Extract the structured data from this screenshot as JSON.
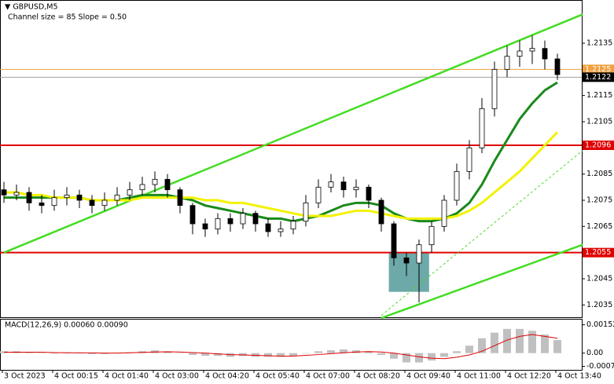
{
  "chart_data": {
    "type": "candlestick",
    "title": "▼ GBPUSD,M5",
    "subtitle": "Channel size = 85 Slope = 0.50",
    "categories": [
      "3 Oct 2023",
      null,
      null,
      null,
      "4 Oct 00:15",
      null,
      null,
      null,
      "4 Oct 01:40",
      null,
      null,
      null,
      "4 Oct 03:00",
      null,
      null,
      null,
      "4 Oct 04:20",
      null,
      null,
      null,
      "4 Oct 05:40",
      null,
      null,
      null,
      "4 Oct 07:00",
      null,
      null,
      null,
      "4 Oct 08:20",
      null,
      null,
      null,
      "4 Oct 09:40",
      null,
      null,
      null,
      "4 Oct 11:00",
      null,
      null,
      null,
      "4 Oct 12:20",
      null,
      null,
      null,
      "4 Oct 13:40"
    ],
    "open": [
      1.2079,
      1.2077,
      1.2078,
      1.2074,
      1.2073,
      1.2076,
      1.2077,
      1.2075,
      1.2073,
      1.2075,
      1.2077,
      1.2079,
      1.2081,
      1.2083,
      1.2079,
      1.2073,
      1.2066,
      1.2064,
      1.2068,
      1.2066,
      1.207,
      1.2066,
      1.2063,
      1.2064,
      1.2067,
      1.2074,
      1.208,
      1.2082,
      1.2079,
      1.208,
      1.2075,
      1.2066,
      1.2053,
      1.2051,
      1.2058,
      1.2065,
      1.2075,
      1.2086,
      1.2095,
      1.211,
      1.2125,
      1.213,
      1.2132,
      1.2133,
      1.2129
    ],
    "high": [
      1.2082,
      1.2081,
      1.208,
      1.2077,
      1.2079,
      1.208,
      1.2079,
      1.2077,
      1.2078,
      1.208,
      1.2082,
      1.2084,
      1.2086,
      1.2085,
      1.208,
      1.2074,
      1.2068,
      1.207,
      1.207,
      1.2072,
      1.2071,
      1.2068,
      1.2067,
      1.2069,
      1.2077,
      1.2083,
      1.2085,
      1.2084,
      1.2083,
      1.2081,
      1.2076,
      1.2067,
      1.2055,
      1.206,
      1.2067,
      1.2077,
      1.2089,
      1.2098,
      1.2114,
      1.2128,
      1.2134,
      1.2136,
      1.2138,
      1.2136,
      1.2131
    ],
    "low": [
      1.2074,
      1.2075,
      1.2071,
      1.207,
      1.2071,
      1.2073,
      1.2072,
      1.207,
      1.2071,
      1.2073,
      1.2075,
      1.2077,
      1.2078,
      1.2076,
      1.207,
      1.2062,
      1.2061,
      1.2062,
      1.2063,
      1.2064,
      1.2063,
      1.2061,
      1.2061,
      1.2062,
      1.2065,
      1.2072,
      1.2078,
      1.2076,
      1.2076,
      1.2072,
      1.2063,
      1.205,
      1.2046,
      1.2036,
      1.2055,
      1.2063,
      1.2073,
      1.2083,
      1.2093,
      1.2107,
      1.2122,
      1.2126,
      1.2127,
      1.2125,
      1.2121
    ],
    "close": [
      1.2077,
      1.2078,
      1.2074,
      1.2073,
      1.2076,
      1.2077,
      1.2075,
      1.2073,
      1.2075,
      1.2077,
      1.2079,
      1.2081,
      1.2083,
      1.2079,
      1.2073,
      1.2066,
      1.2064,
      1.2068,
      1.2066,
      1.207,
      1.2066,
      1.2063,
      1.2064,
      1.2067,
      1.2074,
      1.208,
      1.2082,
      1.2079,
      1.208,
      1.2075,
      1.2066,
      1.2053,
      1.2051,
      1.2058,
      1.2065,
      1.2075,
      1.2086,
      1.2095,
      1.211,
      1.2125,
      1.213,
      1.2132,
      1.2133,
      1.2129,
      1.2123
    ],
    "series": [
      {
        "color": "#1a8a1a",
        "values": [
          1.2076,
          1.2076,
          1.2076,
          1.2076,
          1.2076,
          1.2076,
          1.2076,
          1.2075,
          1.2075,
          1.2075,
          1.2076,
          1.2077,
          1.2077,
          1.2077,
          1.2076,
          1.2075,
          1.2073,
          1.2072,
          1.2071,
          1.207,
          1.2069,
          1.2068,
          1.2068,
          1.2067,
          1.2068,
          1.2069,
          1.2071,
          1.2073,
          1.2074,
          1.2074,
          1.2073,
          1.207,
          1.2068,
          1.2067,
          1.2067,
          1.2068,
          1.207,
          1.2074,
          1.2081,
          1.209,
          1.2098,
          1.2106,
          1.2112,
          1.2117,
          1.212
        ]
      },
      {
        "color": "#f2f200",
        "values": [
          1.2078,
          1.2078,
          1.2077,
          1.2077,
          1.2076,
          1.2076,
          1.2076,
          1.2075,
          1.2075,
          1.2075,
          1.2075,
          1.2076,
          1.2076,
          1.2076,
          1.2076,
          1.2076,
          1.2075,
          1.2075,
          1.2074,
          1.2074,
          1.2073,
          1.2072,
          1.2071,
          1.207,
          1.2069,
          1.2069,
          1.2069,
          1.207,
          1.2071,
          1.2071,
          1.207,
          1.2069,
          1.2068,
          1.2068,
          1.2068,
          1.2068,
          1.2069,
          1.2071,
          1.2074,
          1.2078,
          1.2082,
          1.2086,
          1.2091,
          1.2096,
          1.2101
        ]
      }
    ],
    "ylim": [
      1.203,
      1.215
    ],
    "yticks": [
      1.2135,
      1.2115,
      1.2105,
      1.2085,
      1.2075,
      1.2065,
      1.2045,
      1.2035
    ],
    "levels": [
      {
        "value": 1.2096,
        "color": "#e00000"
      },
      {
        "value": 1.2055,
        "color": "#e00000"
      }
    ],
    "ask_line": {
      "value": 1.2125,
      "color": "#f0a040"
    },
    "bid_line": {
      "value": 1.2122,
      "color": "#a0a0a0"
    },
    "channel": {
      "color": "#44dd22",
      "upper": {
        "x": [
          0,
          46
        ],
        "y": [
          1.2055,
          1.2146
        ]
      },
      "lower": {
        "x": [
          30,
          46
        ],
        "y": [
          1.203,
          1.2058
        ]
      },
      "middle": {
        "x": [
          30,
          46
        ],
        "y": [
          1.2031,
          1.2094
        ]
      }
    },
    "zone": {
      "color": "#3c8c8c",
      "x": [
        30.6,
        33.8
      ],
      "y": [
        1.204,
        1.2055
      ]
    },
    "macd": {
      "label": "MACD(12,26,9) 0.00060 0.00090",
      "histogram": [
        0.0001,
        0.0001,
        5e-05,
        0,
        0,
        5e-05,
        0,
        -5e-05,
        -5e-05,
        0,
        5e-05,
        0.0001,
        0.00015,
        0.0001,
        0,
        -0.0001,
        -0.00015,
        -0.00015,
        -0.0002,
        -0.00015,
        -0.0002,
        -0.0002,
        -0.0002,
        -0.00015,
        0,
        0.0001,
        0.00015,
        0.0002,
        0.00015,
        0.0001,
        -0.0001,
        -0.0003,
        -0.0005,
        -0.0005,
        -0.0004,
        -0.0002,
        0.0001,
        0.0004,
        0.0008,
        0.0011,
        0.0013,
        0.0013,
        0.0012,
        0.001,
        0.0007
      ],
      "signal": [
        5e-05,
        5e-05,
        5e-05,
        5e-05,
        3e-05,
        2e-05,
        2e-05,
        1e-05,
        0,
        0,
        2e-05,
        4e-05,
        6e-05,
        7e-05,
        6e-05,
        3e-05,
        0,
        -4e-05,
        -8e-05,
        -0.0001,
        -0.00012,
        -0.00014,
        -0.00016,
        -0.00016,
        -0.00012,
        -8e-05,
        -3e-05,
        2e-05,
        6e-05,
        8e-05,
        6e-05,
        0,
        -0.0001,
        -0.0002,
        -0.00027,
        -0.0003,
        -0.00022,
        -0.0001,
        0.0001,
        0.0004,
        0.0007,
        0.0009,
        0.001,
        0.0009,
        0.0008
      ],
      "histogram_color": "#c0c0c0",
      "signal_color": "#e00000",
      "ylim": [
        -0.0009,
        0.0018
      ],
      "yticks": [
        0.00152,
        {
          "value": 0,
          "label": "0.00"
        },
        -0.00071
      ]
    }
  }
}
